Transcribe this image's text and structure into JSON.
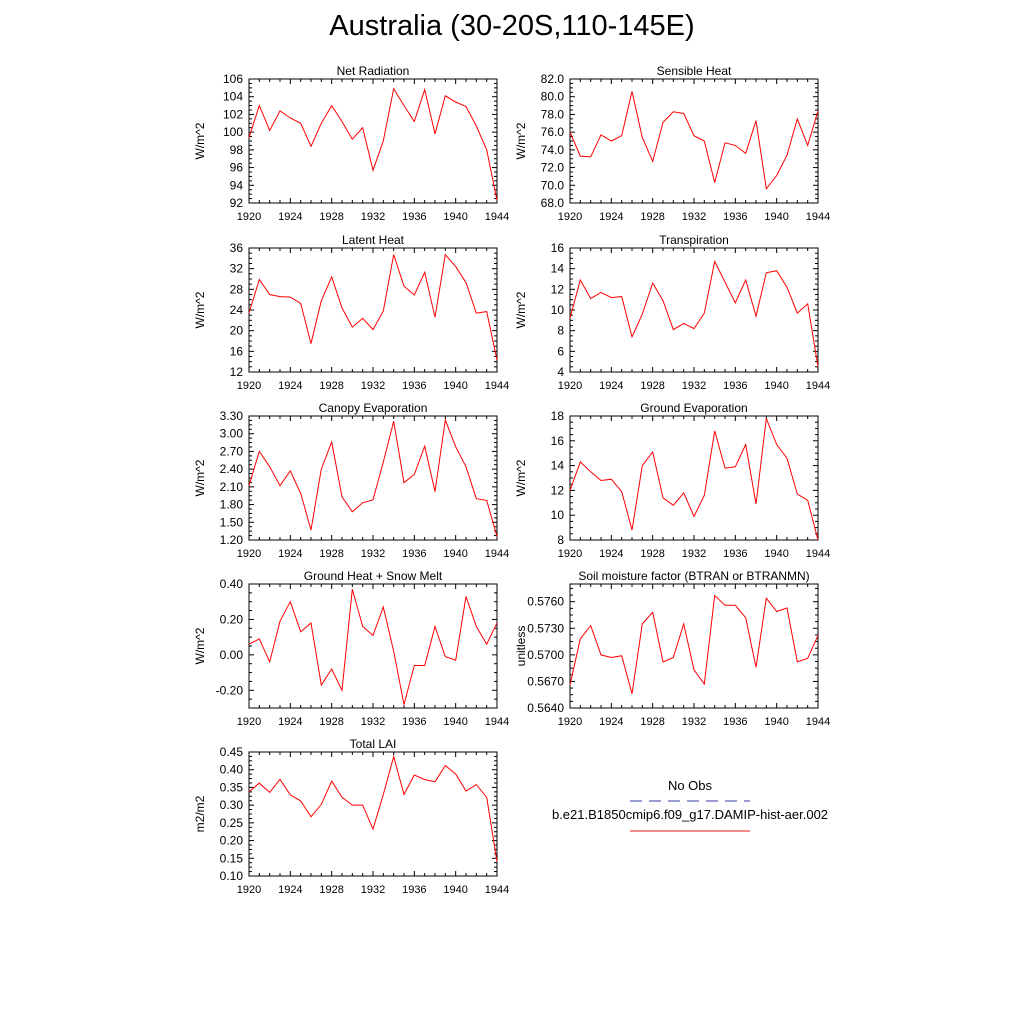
{
  "title": "Australia (30-20S,110-145E)",
  "legend": {
    "obs_label": "No Obs",
    "obs_color": "#3a3aa8",
    "model_label": "b.e21.B1850cmip6.f09_g17.DAMIP-hist-aer.002",
    "model_color": "#e01818"
  },
  "line_color": "#ff0000",
  "chart_data": [
    {
      "type": "line",
      "title": "Net Radiation",
      "ylabel": "W/m^2",
      "xlim": [
        1920,
        1944
      ],
      "ylim": [
        92,
        106
      ],
      "xticks": [
        "1920",
        "1924",
        "1928",
        "1932",
        "1936",
        "1940",
        "1944"
      ],
      "yticks": [
        "92",
        "94",
        "96",
        "98",
        "100",
        "102",
        "104",
        "106"
      ],
      "x": [
        1920,
        1921,
        1922,
        1923,
        1924,
        1925,
        1926,
        1927,
        1928,
        1929,
        1930,
        1931,
        1932,
        1933,
        1934,
        1935,
        1936,
        1937,
        1938,
        1939,
        1940,
        1941,
        1942,
        1943,
        1944
      ],
      "values": [
        99.4,
        103.0,
        100.2,
        102.4,
        101.6,
        101.0,
        98.4,
        101.0,
        103.0,
        101.2,
        99.2,
        100.5,
        95.7,
        99.0,
        104.9,
        103.0,
        101.2,
        104.8,
        99.8,
        104.1,
        103.4,
        102.9,
        100.7,
        98.0,
        92.3
      ]
    },
    {
      "type": "line",
      "title": "Sensible Heat",
      "ylabel": "W/m^2",
      "xlim": [
        1920,
        1944
      ],
      "ylim": [
        68,
        82
      ],
      "xticks": [
        "1920",
        "1924",
        "1928",
        "1932",
        "1936",
        "1940",
        "1944"
      ],
      "yticks": [
        "68.0",
        "70.0",
        "72.0",
        "74.0",
        "76.0",
        "78.0",
        "80.0",
        "82.0"
      ],
      "x": [
        1920,
        1921,
        1922,
        1923,
        1924,
        1925,
        1926,
        1927,
        1928,
        1929,
        1930,
        1931,
        1932,
        1933,
        1934,
        1935,
        1936,
        1937,
        1938,
        1939,
        1940,
        1941,
        1942,
        1943,
        1944
      ],
      "values": [
        76.0,
        73.3,
        73.2,
        75.7,
        75.0,
        75.6,
        80.6,
        75.4,
        72.7,
        77.1,
        78.3,
        78.1,
        75.6,
        75.0,
        70.3,
        74.8,
        74.5,
        73.6,
        77.3,
        69.6,
        71.1,
        73.4,
        77.5,
        74.5,
        78.4
      ]
    },
    {
      "type": "line",
      "title": "Latent Heat",
      "ylabel": "W/m^2",
      "xlim": [
        1920,
        1944
      ],
      "ylim": [
        12,
        36
      ],
      "xticks": [
        "1920",
        "1924",
        "1928",
        "1932",
        "1936",
        "1940",
        "1944"
      ],
      "yticks": [
        "12",
        "16",
        "20",
        "24",
        "28",
        "32",
        "36"
      ],
      "x": [
        1920,
        1921,
        1922,
        1923,
        1924,
        1925,
        1926,
        1927,
        1928,
        1929,
        1930,
        1931,
        1932,
        1933,
        1934,
        1935,
        1936,
        1937,
        1938,
        1939,
        1940,
        1941,
        1942,
        1943,
        1944
      ],
      "values": [
        23.4,
        29.9,
        27.0,
        26.6,
        26.5,
        25.3,
        17.5,
        25.8,
        30.4,
        24.4,
        20.7,
        22.4,
        20.2,
        23.8,
        34.7,
        28.6,
        26.9,
        31.3,
        22.6,
        34.7,
        32.4,
        29.3,
        23.4,
        23.7,
        14.3
      ]
    },
    {
      "type": "line",
      "title": "Transpiration",
      "ylabel": "W/m^2",
      "xlim": [
        1920,
        1944
      ],
      "ylim": [
        4,
        16
      ],
      "xticks": [
        "1920",
        "1924",
        "1928",
        "1932",
        "1936",
        "1940",
        "1944"
      ],
      "yticks": [
        "4",
        "6",
        "8",
        "10",
        "12",
        "14",
        "16"
      ],
      "x": [
        1920,
        1921,
        1922,
        1923,
        1924,
        1925,
        1926,
        1927,
        1928,
        1929,
        1930,
        1931,
        1932,
        1933,
        1934,
        1935,
        1936,
        1937,
        1938,
        1939,
        1940,
        1941,
        1942,
        1943,
        1944
      ],
      "values": [
        9.2,
        12.9,
        11.1,
        11.7,
        11.2,
        11.3,
        7.4,
        9.6,
        12.6,
        10.9,
        8.1,
        8.7,
        8.2,
        9.7,
        14.7,
        12.7,
        10.7,
        12.9,
        9.4,
        13.6,
        13.8,
        12.2,
        9.7,
        10.6,
        4.5
      ]
    },
    {
      "type": "line",
      "title": "Canopy Evaporation",
      "ylabel": "W/m^2",
      "xlim": [
        1920,
        1944
      ],
      "ylim": [
        1.2,
        3.3
      ],
      "xticks": [
        "1920",
        "1924",
        "1928",
        "1932",
        "1936",
        "1940",
        "1944"
      ],
      "yticks": [
        "1.20",
        "1.50",
        "1.80",
        "2.10",
        "2.40",
        "2.70",
        "3.00",
        "3.30"
      ],
      "x": [
        1920,
        1921,
        1922,
        1923,
        1924,
        1925,
        1926,
        1927,
        1928,
        1929,
        1930,
        1931,
        1932,
        1933,
        1934,
        1935,
        1936,
        1937,
        1938,
        1939,
        1940,
        1941,
        1942,
        1943,
        1944
      ],
      "values": [
        2.12,
        2.7,
        2.44,
        2.12,
        2.37,
        1.99,
        1.37,
        2.4,
        2.86,
        1.93,
        1.68,
        1.83,
        1.88,
        2.52,
        3.21,
        2.17,
        2.31,
        2.79,
        2.02,
        3.23,
        2.78,
        2.44,
        1.9,
        1.87,
        1.26
      ]
    },
    {
      "type": "line",
      "title": "Ground Evaporation",
      "ylabel": "W/m^2",
      "xlim": [
        1920,
        1944
      ],
      "ylim": [
        8,
        18
      ],
      "xticks": [
        "1920",
        "1924",
        "1928",
        "1932",
        "1936",
        "1940",
        "1944"
      ],
      "yticks": [
        "8",
        "10",
        "12",
        "14",
        "16",
        "18"
      ],
      "x": [
        1920,
        1921,
        1922,
        1923,
        1924,
        1925,
        1926,
        1927,
        1928,
        1929,
        1930,
        1931,
        1932,
        1933,
        1934,
        1935,
        1936,
        1937,
        1938,
        1939,
        1940,
        1941,
        1942,
        1943,
        1944
      ],
      "values": [
        12.0,
        14.3,
        13.5,
        12.8,
        12.9,
        11.9,
        8.8,
        14.0,
        15.1,
        11.4,
        10.8,
        11.8,
        9.9,
        11.6,
        16.8,
        13.8,
        13.9,
        15.7,
        10.9,
        17.8,
        15.7,
        14.6,
        11.7,
        11.2,
        8.0
      ]
    },
    {
      "type": "line",
      "title": "Ground Heat + Snow Melt",
      "ylabel": "W/m^2",
      "xlim": [
        1920,
        1944
      ],
      "ylim": [
        -0.3,
        0.4
      ],
      "xticks": [
        "1920",
        "1924",
        "1928",
        "1932",
        "1936",
        "1940",
        "1944"
      ],
      "yticks": [
        "-0.20",
        "0.00",
        "0.20",
        "0.40"
      ],
      "x": [
        1920,
        1921,
        1922,
        1923,
        1924,
        1925,
        1926,
        1927,
        1928,
        1929,
        1930,
        1931,
        1932,
        1933,
        1934,
        1935,
        1936,
        1937,
        1938,
        1939,
        1940,
        1941,
        1942,
        1943,
        1944
      ],
      "values": [
        0.06,
        0.09,
        -0.04,
        0.19,
        0.3,
        0.13,
        0.18,
        -0.17,
        -0.08,
        -0.2,
        0.37,
        0.16,
        0.11,
        0.27,
        0.02,
        -0.28,
        -0.06,
        -0.06,
        0.16,
        -0.01,
        -0.03,
        0.33,
        0.16,
        0.06,
        0.18
      ]
    },
    {
      "type": "line",
      "title": "Soil moisture factor (BTRAN or BTRANMN)",
      "ylabel": "unitless",
      "xlim": [
        1920,
        1944
      ],
      "ylim": [
        0.564,
        0.578
      ],
      "xticks": [
        "1920",
        "1924",
        "1928",
        "1932",
        "1936",
        "1940",
        "1944"
      ],
      "yticks": [
        "0.5640",
        "0.5670",
        "0.5700",
        "0.5730",
        "0.5760"
      ],
      "x": [
        1920,
        1921,
        1922,
        1923,
        1924,
        1925,
        1926,
        1927,
        1928,
        1929,
        1930,
        1931,
        1932,
        1933,
        1934,
        1935,
        1936,
        1937,
        1938,
        1939,
        1940,
        1941,
        1942,
        1943,
        1944
      ],
      "values": [
        0.5666,
        0.5718,
        0.5733,
        0.57,
        0.5697,
        0.5699,
        0.5656,
        0.5735,
        0.5748,
        0.5692,
        0.5697,
        0.5735,
        0.5683,
        0.5667,
        0.5767,
        0.5756,
        0.5756,
        0.5742,
        0.5686,
        0.5764,
        0.5749,
        0.5753,
        0.5692,
        0.5696,
        0.5722
      ]
    },
    {
      "type": "line",
      "title": "Total LAI",
      "ylabel": "m2/m2",
      "xlim": [
        1920,
        1944
      ],
      "ylim": [
        0.1,
        0.45
      ],
      "xticks": [
        "1920",
        "1924",
        "1928",
        "1932",
        "1936",
        "1940",
        "1944"
      ],
      "yticks": [
        "0.10",
        "0.15",
        "0.20",
        "0.25",
        "0.30",
        "0.35",
        "0.40",
        "0.45"
      ],
      "x": [
        1920,
        1921,
        1922,
        1923,
        1924,
        1925,
        1926,
        1927,
        1928,
        1929,
        1930,
        1931,
        1932,
        1933,
        1934,
        1935,
        1936,
        1937,
        1938,
        1939,
        1940,
        1941,
        1942,
        1943,
        1944
      ],
      "values": [
        0.338,
        0.362,
        0.336,
        0.373,
        0.329,
        0.312,
        0.267,
        0.302,
        0.368,
        0.322,
        0.3,
        0.3,
        0.232,
        0.33,
        0.437,
        0.33,
        0.385,
        0.372,
        0.366,
        0.412,
        0.388,
        0.34,
        0.358,
        0.322,
        0.14
      ]
    }
  ]
}
